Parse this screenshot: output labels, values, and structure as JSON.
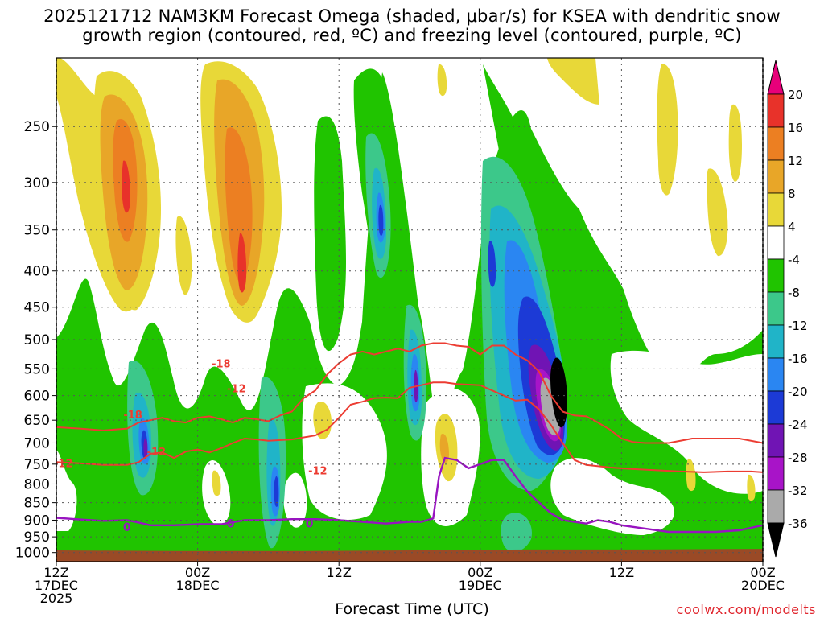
{
  "title_line1": "2025121712 NAM3KM Forecast Omega (shaded, μbar/s) for KSEA with dendritic snow",
  "title_line2": "growth region (contoured, red, ºC) and freezing level (contoured, purple, ºC)",
  "credit": "coolwx.com/modelts",
  "chart_data": {
    "type": "heatmap",
    "title": "2025121712 NAM3KM Forecast Omega (shaded, μbar/s) for KSEA with dendritic snow growth region (contoured, red, ºC) and freezing level (contoured, purple, ºC)",
    "xlabel": "Forecast Time (UTC)",
    "ylabel": "",
    "x_ticks": [
      {
        "label": [
          "12Z",
          "17DEC",
          "2025"
        ],
        "hours": 0
      },
      {
        "label": [
          "00Z",
          "18DEC"
        ],
        "hours": 12
      },
      {
        "label": [
          "12Z"
        ],
        "hours": 24
      },
      {
        "label": [
          "00Z",
          "19DEC"
        ],
        "hours": 36
      },
      {
        "label": [
          "12Z"
        ],
        "hours": 48
      },
      {
        "label": [
          "00Z",
          "20DEC"
        ],
        "hours": 60
      }
    ],
    "xlim_hours": [
      0,
      60
    ],
    "y_ticks": [
      "250",
      "300",
      "350",
      "400",
      "450",
      "500",
      "550",
      "600",
      "650",
      "700",
      "750",
      "800",
      "850",
      "900",
      "950",
      "1000"
    ],
    "ylim_hpa": [
      1030,
      200
    ],
    "grid": true,
    "colorbar": {
      "units": "μbar/s",
      "labels": [
        "20",
        "16",
        "12",
        "8",
        "4",
        "-4",
        "-8",
        "-12",
        "-16",
        "-20",
        "-24",
        "-28",
        "-32",
        "-36"
      ],
      "colors": [
        "#e8007a",
        "#e8322a",
        "#ec7f22",
        "#e8a628",
        "#e8d838",
        "#ffffff",
        "#20c400",
        "#3cc88a",
        "#20b4c8",
        "#2a86f2",
        "#1c3ad6",
        "#7014b4",
        "#a814c8",
        "#aaaaaa",
        "#000000"
      ]
    },
    "omega_contours": [
      {
        "value": 4,
        "color": "#e8d838",
        "polys": [
          [
            [
              0,
              1030
            ],
            [
              10,
              1030
            ],
            [
              14,
              1000
            ],
            [
              18,
              1030
            ],
            [
              60,
              1030
            ],
            [
              60,
              1030
            ],
            [
              0,
              1030
            ]
          ]
        ]
      }
    ],
    "red_contours": [
      {
        "label": "-12",
        "points": [
          [
            0,
            745
          ],
          [
            2,
            748
          ],
          [
            4,
            752
          ],
          [
            6,
            752
          ],
          [
            7,
            745
          ],
          [
            8,
            725
          ],
          [
            9,
            722
          ],
          [
            10,
            735
          ],
          [
            11,
            720
          ],
          [
            12,
            715
          ],
          [
            13,
            722
          ],
          [
            14,
            712
          ],
          [
            15,
            700
          ],
          [
            16,
            690
          ],
          [
            17,
            692
          ],
          [
            18,
            695
          ],
          [
            20,
            692
          ],
          [
            22,
            683
          ],
          [
            23,
            670
          ],
          [
            24,
            645
          ],
          [
            25,
            618
          ],
          [
            26,
            612
          ],
          [
            27,
            605
          ],
          [
            28,
            604
          ],
          [
            29,
            605
          ],
          [
            30,
            585
          ],
          [
            31,
            580
          ],
          [
            32,
            575
          ],
          [
            33,
            575
          ],
          [
            34,
            578
          ],
          [
            36,
            580
          ],
          [
            37,
            590
          ],
          [
            38,
            600
          ],
          [
            39,
            610
          ],
          [
            40,
            608
          ],
          [
            41,
            628
          ],
          [
            42,
            660
          ],
          [
            43,
            700
          ],
          [
            44,
            740
          ],
          [
            45,
            752
          ],
          [
            47,
            758
          ],
          [
            49,
            762
          ],
          [
            51,
            765
          ],
          [
            53,
            768
          ],
          [
            55,
            770
          ],
          [
            57,
            768
          ],
          [
            59,
            768
          ],
          [
            60,
            770
          ]
        ]
      },
      {
        "label": "-18",
        "points": [
          [
            0,
            665
          ],
          [
            2,
            668
          ],
          [
            4,
            672
          ],
          [
            6,
            668
          ],
          [
            7,
            655
          ],
          [
            8,
            650
          ],
          [
            9,
            645
          ],
          [
            10,
            652
          ],
          [
            11,
            655
          ],
          [
            12,
            645
          ],
          [
            13,
            642
          ],
          [
            14,
            648
          ],
          [
            15,
            655
          ],
          [
            16,
            645
          ],
          [
            17,
            648
          ],
          [
            18,
            652
          ],
          [
            19,
            640
          ],
          [
            20,
            632
          ],
          [
            21,
            605
          ],
          [
            22,
            590
          ],
          [
            23,
            560
          ],
          [
            24,
            540
          ],
          [
            25,
            525
          ],
          [
            26,
            520
          ],
          [
            27,
            525
          ],
          [
            28,
            520
          ],
          [
            29,
            515
          ],
          [
            30,
            520
          ],
          [
            31,
            510
          ],
          [
            32,
            506
          ],
          [
            33,
            506
          ],
          [
            34,
            510
          ],
          [
            35,
            512
          ],
          [
            36,
            525
          ],
          [
            37,
            510
          ],
          [
            38,
            510
          ],
          [
            39,
            525
          ],
          [
            40,
            535
          ],
          [
            41,
            555
          ],
          [
            42,
            600
          ],
          [
            43,
            632
          ],
          [
            44,
            640
          ],
          [
            45,
            642
          ],
          [
            46,
            655
          ],
          [
            47,
            670
          ],
          [
            48,
            690
          ],
          [
            49,
            698
          ],
          [
            50,
            700
          ],
          [
            52,
            700
          ],
          [
            54,
            690
          ],
          [
            56,
            690
          ],
          [
            58,
            690
          ],
          [
            60,
            700
          ]
        ]
      }
    ],
    "red_labels": [
      {
        "text": "-18",
        "x": 6.5,
        "y": 638
      },
      {
        "text": "-12",
        "x": 8.5,
        "y": 720
      },
      {
        "text": "-18",
        "x": 14.0,
        "y": 540
      },
      {
        "text": "-12",
        "x": 15.3,
        "y": 586
      },
      {
        "text": "-12",
        "x": 0.6,
        "y": 747
      },
      {
        "text": "-12",
        "x": 22.2,
        "y": 765
      }
    ],
    "purple_contour": {
      "label": "0",
      "points": [
        [
          0,
          893
        ],
        [
          2,
          898
        ],
        [
          4,
          902
        ],
        [
          6,
          900
        ],
        [
          7,
          907
        ],
        [
          8,
          915
        ],
        [
          10,
          915
        ],
        [
          12,
          912
        ],
        [
          14,
          912
        ],
        [
          16,
          900
        ],
        [
          17,
          900
        ],
        [
          18,
          900
        ],
        [
          20,
          897
        ],
        [
          22,
          897
        ],
        [
          24,
          900
        ],
        [
          26,
          905
        ],
        [
          28,
          910
        ],
        [
          30,
          905
        ],
        [
          31,
          905
        ],
        [
          32,
          895
        ],
        [
          32.5,
          780
        ],
        [
          33,
          735
        ],
        [
          34,
          740
        ],
        [
          35,
          760
        ],
        [
          37,
          740
        ],
        [
          38,
          740
        ],
        [
          39,
          780
        ],
        [
          40,
          820
        ],
        [
          41,
          850
        ],
        [
          42,
          880
        ],
        [
          43,
          900
        ],
        [
          44,
          905
        ],
        [
          45,
          910
        ],
        [
          46,
          900
        ],
        [
          47,
          905
        ],
        [
          48,
          915
        ],
        [
          50,
          925
        ],
        [
          52,
          935
        ],
        [
          54,
          935
        ],
        [
          56,
          935
        ],
        [
          58,
          930
        ],
        [
          60,
          915
        ]
      ]
    },
    "purple_labels": [
      {
        "text": "0",
        "x": 6.0,
        "y": 920
      },
      {
        "text": "0",
        "x": 14.8,
        "y": 910
      },
      {
        "text": "0",
        "x": 21.5,
        "y": 910
      }
    ],
    "terrain": {
      "color": "#9a4a26",
      "points": [
        [
          0,
          1030
        ],
        [
          60,
          1030
        ],
        [
          60,
          988
        ],
        [
          50,
          990
        ],
        [
          40,
          990
        ],
        [
          30,
          993
        ],
        [
          20,
          995
        ],
        [
          10,
          995
        ],
        [
          0,
          993
        ]
      ]
    }
  }
}
